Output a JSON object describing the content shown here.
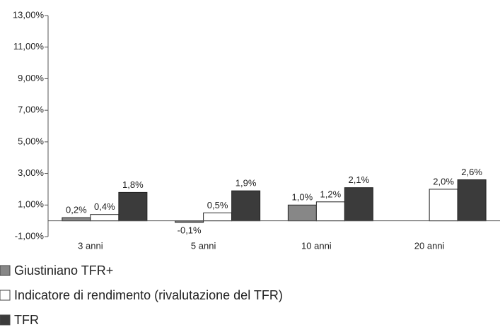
{
  "chart_data": {
    "type": "bar",
    "categories": [
      "3 anni",
      "5 anni",
      "10 anni",
      "20 anni"
    ],
    "series": [
      {
        "name": "Giustiniano TFR+",
        "color": "#878787",
        "values": [
          0.2,
          -0.1,
          1.0,
          null
        ],
        "value_labels": [
          "0,2%",
          "-0,1%",
          "1,0%",
          null
        ]
      },
      {
        "name": "Indicatore di rendimento (rivalutazione del TFR)",
        "color": "#ffffff",
        "values": [
          0.4,
          0.5,
          1.2,
          2.0
        ],
        "value_labels": [
          "0,4%",
          "0,5%",
          "1,2%",
          "2,0%"
        ]
      },
      {
        "name": "TFR",
        "color": "#3b3b3b",
        "values": [
          1.8,
          1.9,
          2.1,
          2.6
        ],
        "value_labels": [
          "1,8%",
          "1,9%",
          "2,1%",
          "2,6%"
        ]
      }
    ],
    "ylim": [
      -1,
      13
    ],
    "yticks": [
      {
        "value": -1,
        "label": "-1,00%"
      },
      {
        "value": 1,
        "label": "1,00%"
      },
      {
        "value": 3,
        "label": "3,00%"
      },
      {
        "value": 5,
        "label": "5,00%"
      },
      {
        "value": 7,
        "label": "7,00%"
      },
      {
        "value": 9,
        "label": "9,00%"
      },
      {
        "value": 11,
        "label": "11,00%"
      },
      {
        "value": 13,
        "label": "13,00%"
      }
    ],
    "grid": false,
    "legend": "bottom"
  }
}
